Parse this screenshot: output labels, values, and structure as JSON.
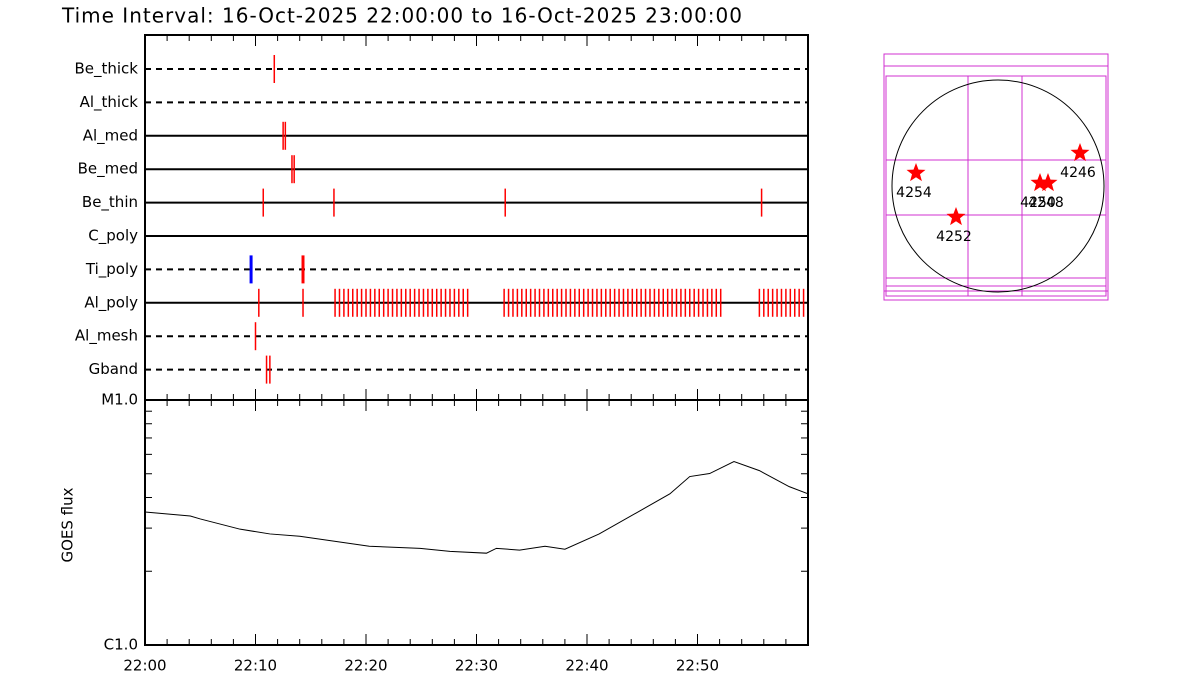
{
  "chart_data": [
    {
      "type": "timeline",
      "title": "Time Interval: 16-Oct-2025 22:00:00 to 16-Oct-2025 23:00:00",
      "xlim": [
        0,
        60
      ],
      "color": "#ff0000",
      "rows": [
        {
          "label": "Be_thick",
          "line": "dashed",
          "events": [
            11.7
          ]
        },
        {
          "label": "Al_thick",
          "line": "dashed",
          "events": []
        },
        {
          "label": "Al_med",
          "line": "solid",
          "events": [
            12.5,
            12.7
          ]
        },
        {
          "label": "Be_med",
          "line": "solid",
          "events": [
            13.3,
            13.5
          ]
        },
        {
          "label": "Be_thin",
          "line": "solid",
          "events": [
            10.7,
            17.1,
            32.6,
            55.8
          ]
        },
        {
          "label": "C_poly",
          "line": "solid",
          "events": []
        },
        {
          "label": "Ti_poly",
          "line": "dashed",
          "events": [
            9.6,
            14.3
          ],
          "colors": [
            "#0000ff",
            "#ff0000"
          ]
        },
        {
          "label": "Al_poly",
          "line": "solid",
          "events": [
            10.3,
            14.3,
            17.2,
            17.6,
            18,
            18.4,
            18.8,
            19.2,
            19.6,
            20,
            20.4,
            20.8,
            21.2,
            21.6,
            22,
            22.4,
            22.8,
            23.2,
            23.6,
            24,
            24.4,
            24.8,
            25.2,
            25.6,
            26,
            26.4,
            26.8,
            27.2,
            27.6,
            28,
            28.4,
            28.8,
            29.2,
            32.5,
            32.9,
            33.3,
            33.7,
            34.1,
            34.5,
            34.9,
            35.3,
            35.7,
            36.1,
            36.5,
            36.9,
            37.3,
            37.7,
            38.1,
            38.5,
            38.9,
            39.3,
            39.7,
            40.1,
            40.5,
            40.9,
            41.3,
            41.7,
            42.1,
            42.5,
            42.9,
            43.3,
            43.7,
            44.1,
            44.5,
            44.9,
            45.3,
            45.7,
            46.1,
            46.5,
            46.9,
            47.3,
            47.7,
            48.1,
            48.5,
            48.9,
            49.3,
            49.7,
            50.1,
            50.5,
            50.9,
            51.3,
            51.7,
            52.1,
            55.6,
            56,
            56.4,
            56.8,
            57.2,
            57.6,
            58,
            58.4,
            58.8,
            59.2,
            59.6
          ]
        },
        {
          "label": "Al_mesh",
          "line": "dashed",
          "events": [
            10.0
          ]
        },
        {
          "label": "Gband",
          "line": "dashed",
          "events": [
            11.0,
            11.3
          ]
        }
      ]
    },
    {
      "type": "line",
      "y_label": "GOES flux",
      "log_y": true,
      "color": "#000000",
      "x": [
        0,
        4.1,
        5.0,
        8.6,
        11.3,
        14.0,
        20.3,
        24.9,
        27.6,
        30.9,
        31.8,
        33.9,
        36.2,
        38.0,
        41.1,
        44.8,
        47.5,
        49.3,
        51.1,
        53.3,
        55.6,
        58.3,
        60
      ],
      "values": [
        3.49e-06,
        3.36e-06,
        3.27e-06,
        2.97e-06,
        2.84e-06,
        2.78e-06,
        2.53e-06,
        2.48e-06,
        2.41e-06,
        2.37e-06,
        2.48e-06,
        2.44e-06,
        2.53e-06,
        2.46e-06,
        2.84e-06,
        3.53e-06,
        4.14e-06,
        4.87e-06,
        5.01e-06,
        5.61e-06,
        5.15e-06,
        4.43e-06,
        4.14e-06
      ],
      "xlim": [
        0,
        60
      ],
      "xticks": [
        {
          "value": 0,
          "label": "22:00"
        },
        {
          "value": 10,
          "label": "22:10"
        },
        {
          "value": 20,
          "label": "22:20"
        },
        {
          "value": 30,
          "label": "22:30"
        },
        {
          "value": 40,
          "label": "22:40"
        },
        {
          "value": 50,
          "label": "22:50"
        }
      ],
      "ylim": [
        1e-06,
        1e-05
      ],
      "yticks": [
        {
          "value": 1e-06,
          "label": "C1.0"
        },
        {
          "value": 1e-05,
          "label": "M1.0"
        }
      ]
    }
  ],
  "map": {
    "regions": [
      {
        "label": "4254"
      },
      {
        "label": "4252"
      },
      {
        "label": "4250"
      },
      {
        "label": "4248"
      },
      {
        "label": "4246"
      }
    ]
  }
}
